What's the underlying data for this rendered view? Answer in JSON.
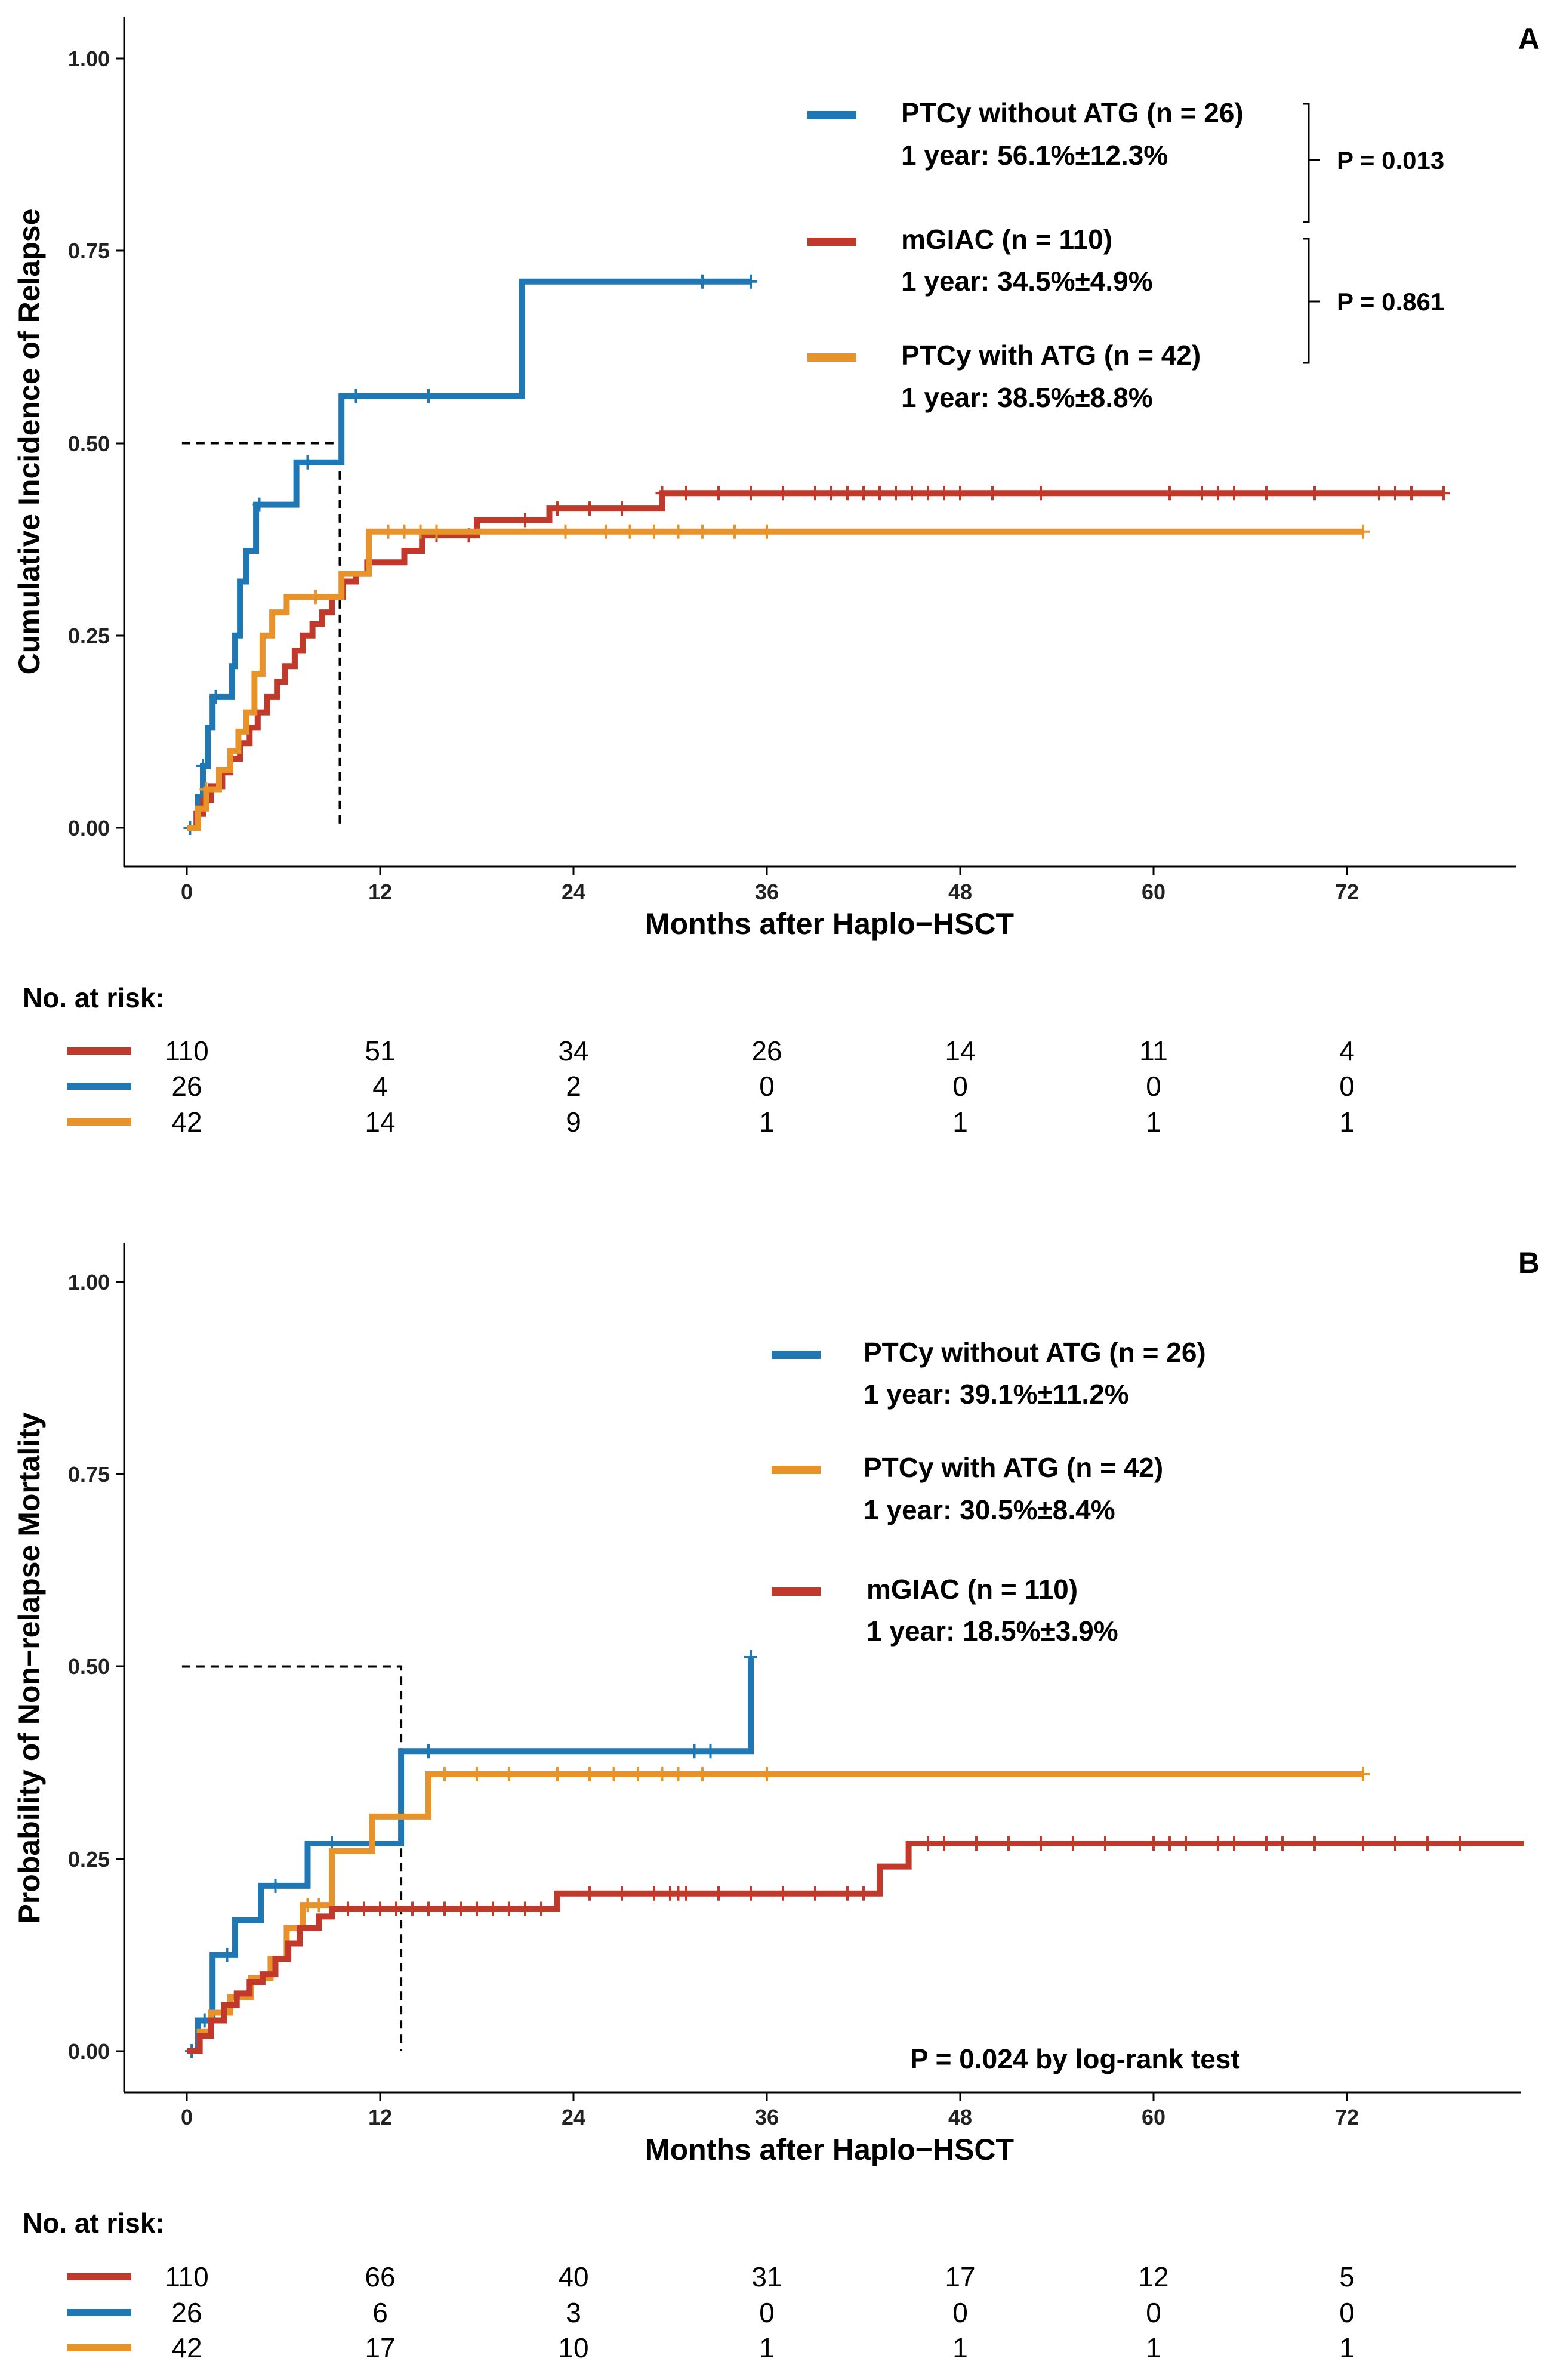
{
  "colors": {
    "mGIAC": "#C0392B",
    "ptcy_no_atg": "#1F78B4",
    "ptcy_atg": "#E8922A"
  },
  "chart_data": [
    {
      "panel": "A",
      "type": "line",
      "step": true,
      "xlabel": "Months after Haplo−HSCT",
      "ylabel": "Cumulative Incidence of Relapse",
      "xticks": [
        0,
        12,
        24,
        36,
        48,
        60,
        72
      ],
      "yticks": [
        "0.00",
        "0.25",
        "0.50",
        "0.75",
        "1.00"
      ],
      "xlim": [
        -1,
        83
      ],
      "ylim": [
        0,
        1
      ],
      "median_guide": {
        "x": 9.5,
        "y": 0.5
      },
      "series": [
        {
          "key": "ptcy_no_atg",
          "name": "PTCy without ATG (n = 26)",
          "summary": "1 year: 56.1%±12.3%",
          "x": [
            0,
            0.7,
            1.0,
            1.3,
            1.6,
            2.8,
            3.0,
            3.3,
            3.7,
            4.3,
            5.0,
            6.8,
            9.6,
            20.8,
            35.0
          ],
          "y": [
            0.0,
            0.04,
            0.08,
            0.13,
            0.17,
            0.21,
            0.25,
            0.32,
            0.36,
            0.42,
            0.42,
            0.475,
            0.561,
            0.71,
            0.71
          ],
          "censor_x": [
            0.2,
            1.0,
            1.8,
            4.5,
            7.5,
            10.5,
            15.0,
            32.0,
            35.0
          ]
        },
        {
          "key": "mGIAC",
          "name": "mGIAC (n = 110)",
          "summary": "1 year: 34.5%±4.9%",
          "x": [
            0,
            0.6,
            1.0,
            1.5,
            2.2,
            2.7,
            3.3,
            3.9,
            4.4,
            5.0,
            5.6,
            6.1,
            6.7,
            7.2,
            7.8,
            8.4,
            9.0,
            9.7,
            10.5,
            11.2,
            12.2,
            13.5,
            14.6,
            18.0,
            22.5,
            29.5,
            78.0
          ],
          "y": [
            0.0,
            0.018,
            0.036,
            0.054,
            0.072,
            0.09,
            0.11,
            0.13,
            0.15,
            0.17,
            0.19,
            0.21,
            0.23,
            0.25,
            0.265,
            0.28,
            0.3,
            0.32,
            0.33,
            0.345,
            0.345,
            0.36,
            0.38,
            0.4,
            0.415,
            0.435,
            0.435
          ],
          "censor_x": [
            15.5,
            17.5,
            21,
            23,
            25,
            27,
            29.5,
            31,
            33,
            35,
            37,
            39,
            40,
            41,
            42,
            43,
            44,
            45,
            46,
            47,
            48,
            50,
            53,
            61,
            63,
            64,
            65,
            67,
            70,
            74,
            75,
            76,
            78
          ]
        },
        {
          "key": "ptcy_atg",
          "name": "PTCy with ATG (n = 42)",
          "summary": "1 year: 38.5%±8.8%",
          "x": [
            0,
            0.7,
            1.2,
            2.0,
            2.7,
            3.2,
            3.7,
            4.2,
            4.7,
            5.3,
            6.2,
            9.6,
            11.3,
            73.0
          ],
          "y": [
            0.0,
            0.025,
            0.05,
            0.075,
            0.1,
            0.125,
            0.15,
            0.2,
            0.25,
            0.28,
            0.3,
            0.33,
            0.385,
            0.385
          ],
          "censor_x": [
            1.2,
            8.0,
            12.5,
            13.5,
            14.5,
            15.5,
            23.5,
            26,
            27.5,
            29,
            30.5,
            32,
            34,
            36,
            73
          ]
        }
      ],
      "p_values": [
        "P = 0.013",
        "P = 0.861"
      ],
      "risk_table": {
        "header": "No. at risk:",
        "rows": [
          {
            "key": "mGIAC",
            "values": [
              "110",
              "51",
              "34",
              "26",
              "14",
              "11",
              "4"
            ]
          },
          {
            "key": "ptcy_no_atg",
            "values": [
              "26",
              "4",
              "2",
              "0",
              "0",
              "0",
              "0"
            ]
          },
          {
            "key": "ptcy_atg",
            "values": [
              "42",
              "14",
              "9",
              "1",
              "1",
              "1",
              "1"
            ]
          }
        ]
      }
    },
    {
      "panel": "B",
      "type": "line",
      "step": true,
      "xlabel": "Months after Haplo−HSCT",
      "ylabel": "Probability of Non−relapse Mortality",
      "xticks": [
        0,
        12,
        24,
        36,
        48,
        60,
        72
      ],
      "yticks": [
        "0.00",
        "0.25",
        "0.50",
        "0.75",
        "1.00"
      ],
      "xlim": [
        -1,
        83
      ],
      "ylim": [
        0,
        1
      ],
      "median_guide": {
        "x": 13.3,
        "y": 0.5
      },
      "series": [
        {
          "key": "ptcy_no_atg",
          "name": "PTCy without ATG (n = 26)",
          "summary": "1 year: 39.1%±11.2%",
          "x": [
            0,
            0.7,
            1.6,
            3.0,
            4.6,
            7.5,
            13.3,
            35.0
          ],
          "y": [
            0.0,
            0.04,
            0.125,
            0.17,
            0.215,
            0.27,
            0.39,
            0.512
          ],
          "censor_x": [
            0.3,
            1.1,
            2.5,
            5.5,
            9.0,
            15.0,
            31.5,
            32.5,
            35.0
          ]
        },
        {
          "key": "ptcy_atg",
          "name": "PTCy with ATG (n = 42)",
          "summary": "1 year: 30.5%±8.4%",
          "x": [
            0,
            0.8,
            1.5,
            2.7,
            4.0,
            5.2,
            6.2,
            7.2,
            9.0,
            11.5,
            15.0,
            73.0
          ],
          "y": [
            0.0,
            0.025,
            0.05,
            0.07,
            0.095,
            0.12,
            0.16,
            0.19,
            0.26,
            0.305,
            0.36,
            0.36
          ],
          "censor_x": [
            7.5,
            8.2,
            16,
            18,
            20,
            23,
            25,
            26.5,
            28,
            29.5,
            30.5,
            32,
            36,
            73
          ]
        },
        {
          "key": "mGIAC",
          "name": "mGIAC (n = 110)",
          "summary": "1 year: 18.5%±3.9%",
          "x": [
            0,
            0.8,
            1.5,
            2.3,
            3.1,
            3.9,
            4.7,
            5.5,
            6.3,
            7.0,
            8.2,
            9.0,
            23.0,
            43.0,
            44.8,
            83.0
          ],
          "y": [
            0.0,
            0.02,
            0.04,
            0.06,
            0.075,
            0.09,
            0.1,
            0.12,
            0.14,
            0.16,
            0.175,
            0.185,
            0.205,
            0.24,
            0.27,
            0.27
          ],
          "censor_x": [
            10,
            11,
            12,
            13,
            14,
            15,
            16,
            17,
            18,
            19,
            20,
            21,
            22,
            25,
            27,
            29,
            30,
            30.5,
            31,
            33,
            35,
            37,
            39,
            41,
            42,
            46,
            47,
            49,
            51,
            53,
            55,
            57,
            60,
            61,
            62,
            64,
            65,
            67,
            68,
            70,
            73,
            75,
            77,
            79
          ]
        }
      ],
      "p_note": "P = 0.024 by log-rank test",
      "risk_table": {
        "header": "No. at risk:",
        "rows": [
          {
            "key": "mGIAC",
            "values": [
              "110",
              "66",
              "40",
              "31",
              "17",
              "12",
              "5"
            ]
          },
          {
            "key": "ptcy_no_atg",
            "values": [
              "26",
              "6",
              "3",
              "0",
              "0",
              "0",
              "0"
            ]
          },
          {
            "key": "ptcy_atg",
            "values": [
              "42",
              "17",
              "10",
              "1",
              "1",
              "1",
              "1"
            ]
          }
        ]
      }
    }
  ]
}
